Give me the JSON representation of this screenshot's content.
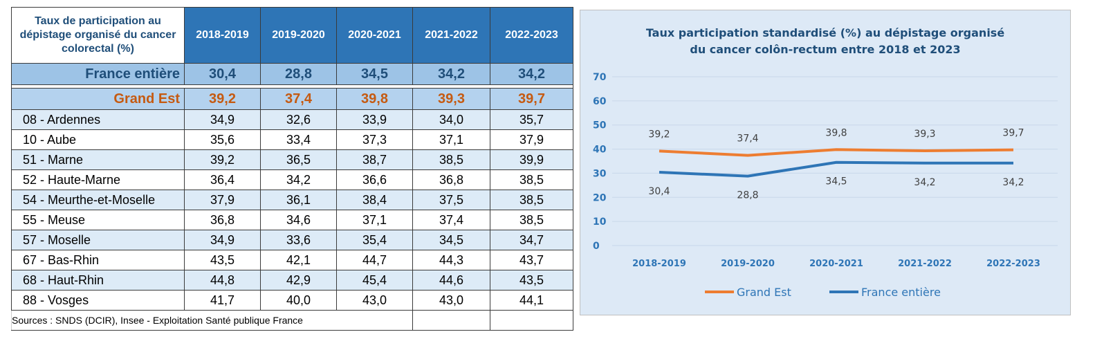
{
  "table": {
    "title": "Taux de participation au dépistage organisé du cancer colorectal (%)",
    "columns": [
      "2018-2019",
      "2019-2020",
      "2020-2021",
      "2021-2022",
      "2022-2023"
    ],
    "france": {
      "label": "France entière",
      "values": [
        "30,4",
        "28,8",
        "34,5",
        "34,2",
        "34,2"
      ]
    },
    "grand_est": {
      "label": "Grand Est",
      "values": [
        "39,2",
        "37,4",
        "39,8",
        "39,3",
        "39,7"
      ]
    },
    "rows": [
      {
        "label": "08 - Ardennes",
        "values": [
          "34,9",
          "32,6",
          "33,9",
          "34,0",
          "35,7"
        ]
      },
      {
        "label": "10 - Aube",
        "values": [
          "35,6",
          "33,4",
          "37,3",
          "37,1",
          "37,9"
        ]
      },
      {
        "label": "51 - Marne",
        "values": [
          "39,2",
          "36,5",
          "38,7",
          "38,5",
          "39,9"
        ]
      },
      {
        "label": "52 - Haute-Marne",
        "values": [
          "36,4",
          "34,2",
          "36,6",
          "36,8",
          "38,5"
        ]
      },
      {
        "label": "54 - Meurthe-et-Moselle",
        "values": [
          "37,9",
          "36,1",
          "38,4",
          "37,5",
          "38,5"
        ]
      },
      {
        "label": "55 - Meuse",
        "values": [
          "36,8",
          "34,6",
          "37,1",
          "37,4",
          "38,5"
        ]
      },
      {
        "label": "57 - Moselle",
        "values": [
          "34,9",
          "33,6",
          "35,4",
          "34,5",
          "34,7"
        ]
      },
      {
        "label": "67 - Bas-Rhin",
        "values": [
          "43,5",
          "42,1",
          "44,7",
          "44,3",
          "43,7"
        ]
      },
      {
        "label": "68 - Haut-Rhin",
        "values": [
          "44,8",
          "42,9",
          "45,4",
          "44,6",
          "43,5"
        ]
      },
      {
        "label": "88 - Vosges",
        "values": [
          "41,7",
          "40,0",
          "43,0",
          "43,0",
          "44,1"
        ]
      }
    ],
    "source": "Sources : SNDS (DCIR), Insee - Exploitation Santé publique France"
  },
  "chart_data": {
    "type": "line",
    "title_lines": [
      "Taux participation standardisé (%) au dépistage organisé",
      "du cancer colôn-rectum entre 2018 et 2023"
    ],
    "categories": [
      "2018-2019",
      "2019-2020",
      "2020-2021",
      "2021-2022",
      "2022-2023"
    ],
    "y_ticks": [
      0,
      10,
      20,
      30,
      40,
      50,
      60,
      70
    ],
    "ylim": [
      0,
      70
    ],
    "grid": true,
    "legend_position": "bottom",
    "series": [
      {
        "name": "Grand Est",
        "color": "#ed7d31",
        "values": [
          39.2,
          37.4,
          39.8,
          39.3,
          39.7
        ],
        "labels": [
          "39,2",
          "37,4",
          "39,8",
          "39,3",
          "39,7"
        ],
        "label_side": "above"
      },
      {
        "name": "France entière",
        "color": "#2e75b6",
        "values": [
          30.4,
          28.8,
          34.5,
          34.2,
          34.2
        ],
        "labels": [
          "30,4",
          "28,8",
          "34,5",
          "34,2",
          "34,2"
        ],
        "label_side": "below"
      }
    ],
    "colors": {
      "axis_text": "#2e75b6",
      "title": "#1f4e79",
      "grid": "#c8d8ea",
      "data_label": "#404040"
    }
  }
}
